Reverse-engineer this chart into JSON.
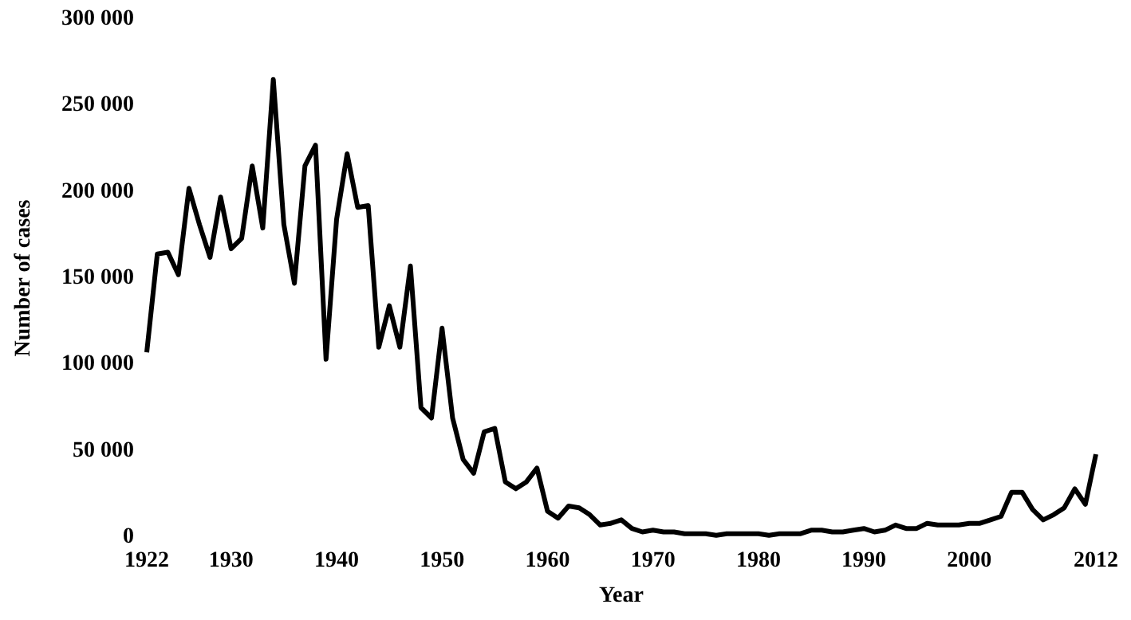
{
  "chart_data": {
    "type": "line",
    "xlabel": "Year",
    "ylabel": "Number of cases",
    "color": "#000000",
    "marker": "none",
    "line_style": "solid",
    "grid": false,
    "x": [
      1922,
      1923,
      1924,
      1925,
      1926,
      1927,
      1928,
      1929,
      1930,
      1931,
      1932,
      1933,
      1934,
      1935,
      1936,
      1937,
      1938,
      1939,
      1940,
      1941,
      1942,
      1943,
      1944,
      1945,
      1946,
      1947,
      1948,
      1949,
      1950,
      1951,
      1952,
      1953,
      1954,
      1955,
      1956,
      1957,
      1958,
      1959,
      1960,
      1961,
      1962,
      1963,
      1964,
      1965,
      1966,
      1967,
      1968,
      1969,
      1970,
      1971,
      1972,
      1973,
      1974,
      1975,
      1976,
      1977,
      1978,
      1979,
      1980,
      1981,
      1982,
      1983,
      1984,
      1985,
      1986,
      1987,
      1988,
      1989,
      1990,
      1991,
      1992,
      1993,
      1994,
      1995,
      1996,
      1997,
      1998,
      1999,
      2000,
      2001,
      2002,
      2003,
      2004,
      2005,
      2006,
      2007,
      2008,
      2009,
      2010,
      2011,
      2012
    ],
    "values": [
      107000,
      164000,
      165000,
      152000,
      202000,
      181000,
      162000,
      197000,
      167000,
      173000,
      215000,
      179000,
      265000,
      181000,
      147000,
      215000,
      227000,
      103000,
      184000,
      222000,
      191000,
      192000,
      110000,
      134000,
      110000,
      157000,
      75000,
      69000,
      121000,
      69000,
      45000,
      37000,
      61000,
      63000,
      32000,
      28000,
      32000,
      40000,
      15000,
      11000,
      18000,
      17000,
      13000,
      7000,
      8000,
      10000,
      5000,
      3000,
      4000,
      3000,
      3000,
      2000,
      2000,
      2000,
      1000,
      2000,
      2000,
      2000,
      2000,
      1000,
      2000,
      2000,
      2000,
      4000,
      4000,
      3000,
      3000,
      4000,
      5000,
      3000,
      4000,
      7000,
      5000,
      5000,
      8000,
      7000,
      7000,
      7000,
      8000,
      8000,
      10000,
      12000,
      26000,
      26000,
      16000,
      10000,
      13000,
      17000,
      28000,
      19000,
      48000
    ],
    "xlim": [
      1922,
      2012
    ],
    "xticks": [
      1922,
      1930,
      1940,
      1950,
      1960,
      1970,
      1980,
      1990,
      2000,
      2012
    ],
    "ylim": [
      0,
      300000
    ],
    "yticks": [
      0,
      {
        "value": 50000,
        "label": "50 000"
      },
      {
        "value": 100000,
        "label": "100 000"
      },
      {
        "value": 150000,
        "label": "150 000"
      },
      {
        "value": 200000,
        "label": "200 000"
      },
      {
        "value": 250000,
        "label": "250 000"
      },
      {
        "value": 300000,
        "label": "300 000"
      }
    ]
  }
}
